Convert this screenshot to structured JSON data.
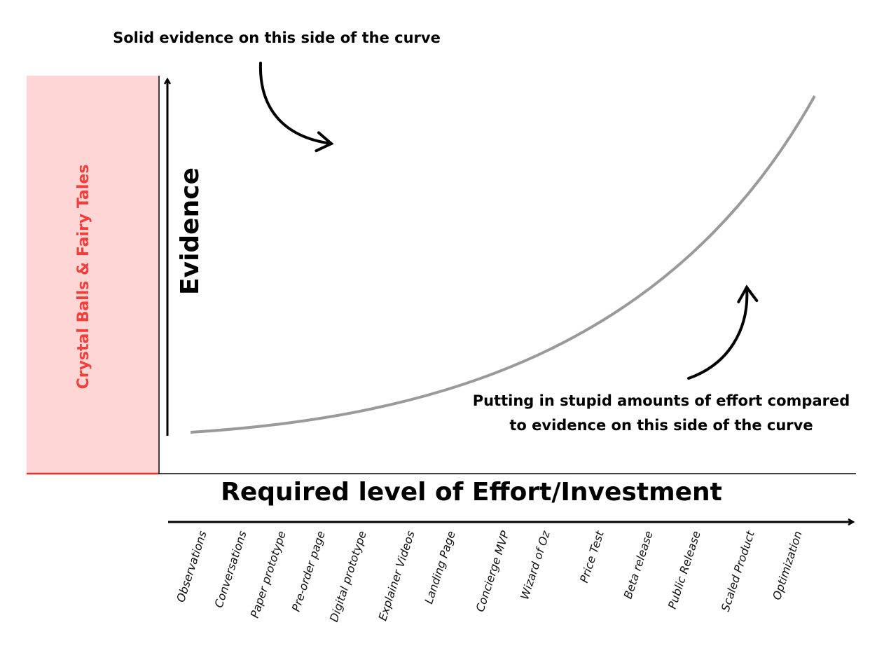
{
  "diagram": {
    "top_note": "Solid evidence on this side of the curve",
    "side_box": "Crystal Balls & Fairy Tales",
    "y_axis": "Evidence",
    "x_axis": "Required level of Effort/Investment",
    "bottom_note": [
      "Putting in stupid amounts of effort compared",
      "to evidence on this side of the curve"
    ],
    "categories": [
      "Observations",
      "Conversations",
      "Paper prototype",
      "Pre-order page",
      "Digital prototype",
      "Explainer Videos",
      "Landing Page",
      "Concierge MVP",
      "Wizard of Oz",
      "Price Test",
      "Beta release",
      "Public Release",
      "Scaled Product",
      "Optimization"
    ]
  }
}
